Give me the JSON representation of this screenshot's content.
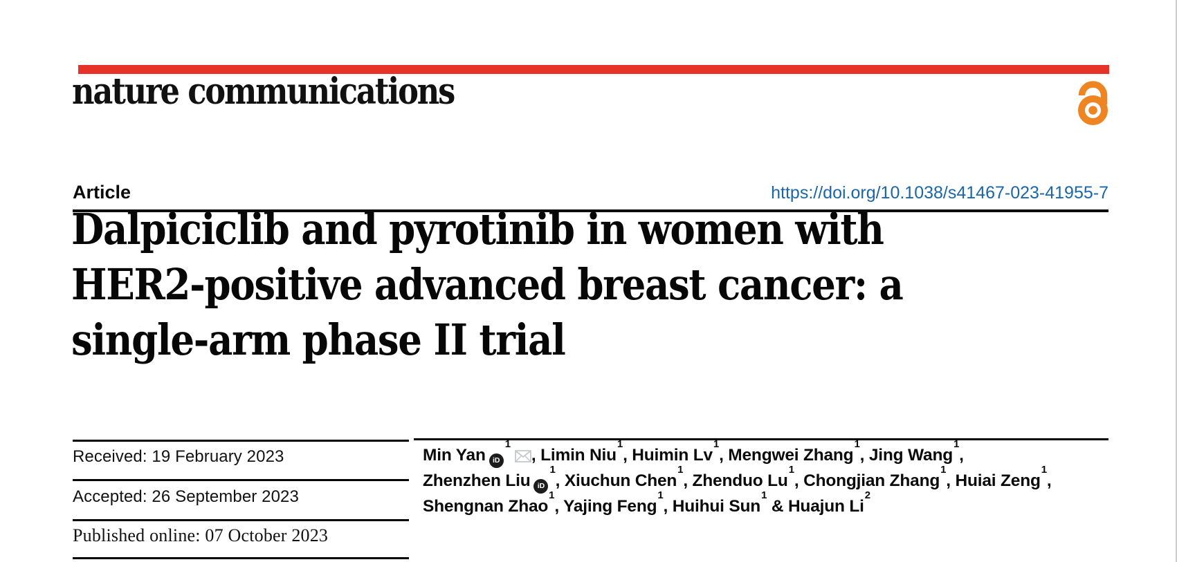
{
  "journal": {
    "wordmark": "nature communications"
  },
  "header": {
    "article_type": "Article",
    "doi": "https://doi.org/10.1038/s41467-023-41955-7"
  },
  "article": {
    "title_lines": [
      "Dalpiciclib and pyrotinib in women with",
      "HER2-positive advanced breast cancer: a",
      "single-arm phase II trial"
    ]
  },
  "history": {
    "rows": [
      {
        "label": "Received:",
        "date": "19 February 2023"
      },
      {
        "label": "Accepted:",
        "date": "26 September 2023"
      },
      {
        "label": "Published online:",
        "date": "07 October 2023"
      }
    ]
  },
  "authors": {
    "lines": [
      [
        {
          "name": "Min Yan",
          "orcid": true,
          "sup": "1",
          "email": true,
          "tail": ", "
        },
        {
          "name": "Limin Niu",
          "sup": "1",
          "tail": ", "
        },
        {
          "name": "Huimin Lv",
          "sup": "1",
          "tail": ", "
        },
        {
          "name": "Mengwei Zhang",
          "sup": "1",
          "tail": ", "
        },
        {
          "name": "Jing Wang",
          "sup": "1",
          "tail": ","
        }
      ],
      [
        {
          "name": "Zhenzhen Liu",
          "orcid": true,
          "sup": "1",
          "tail": ", "
        },
        {
          "name": "Xiuchun Chen",
          "sup": "1",
          "tail": ", "
        },
        {
          "name": "Zhenduo Lu",
          "sup": "1",
          "tail": ", "
        },
        {
          "name": "Chongjian Zhang",
          "sup": "1",
          "tail": ", "
        },
        {
          "name": "Huiai Zeng",
          "sup": "1",
          "tail": ","
        }
      ],
      [
        {
          "name": "Shengnan Zhao",
          "sup": "1",
          "tail": ", "
        },
        {
          "name": "Yajing Feng",
          "sup": "1",
          "tail": ", "
        },
        {
          "name": "Huihui Sun",
          "sup": "1",
          "tail": " & "
        },
        {
          "name": "Huajun Li",
          "sup": "2",
          "tail": ""
        }
      ]
    ]
  },
  "icons": {
    "open_access": "open-padlock",
    "orcid_glyph": "iD",
    "email": "envelope-outline"
  },
  "colors": {
    "brand_red": "#e63329",
    "link_blue": "#1a66a8",
    "oa_orange": "#ee8522",
    "ink": "#0d0d0d"
  }
}
